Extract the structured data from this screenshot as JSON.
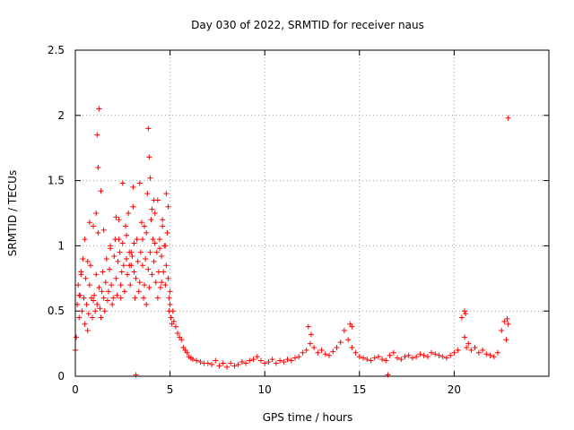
{
  "chart_data": {
    "type": "scatter",
    "title": "Day 030 of 2022, SRMTID for receiver naus",
    "xlabel": "GPS time / hours",
    "ylabel": "SRMTID / TECUs",
    "xlim": [
      0,
      25
    ],
    "ylim": [
      0,
      2.5
    ],
    "xticks": [
      0,
      5,
      10,
      15,
      20
    ],
    "xtick_labels": [
      "0",
      "5",
      "10",
      "15",
      "20"
    ],
    "yticks": [
      0,
      0.5,
      1,
      1.5,
      2,
      2.5
    ],
    "ytick_labels": [
      "0",
      "0.5",
      "1",
      "1.5",
      "2",
      "2.5"
    ],
    "grid": true,
    "marker": "plus",
    "series": [
      {
        "name": "SRMTID",
        "color": "#ff0000",
        "x": [
          0.0,
          0.05,
          0.1,
          0.15,
          0.2,
          0.25,
          0.3,
          0.35,
          0.4,
          0.45,
          0.5,
          0.55,
          0.6,
          0.65,
          0.7,
          0.75,
          0.8,
          0.85,
          0.9,
          0.95,
          1.0,
          1.05,
          1.1,
          1.15,
          1.2,
          1.25,
          1.3,
          1.35,
          1.4,
          1.45,
          1.5,
          1.55,
          1.6,
          1.65,
          1.7,
          1.75,
          1.8,
          1.85,
          1.9,
          1.95,
          2.0,
          2.05,
          2.1,
          2.15,
          2.2,
          2.25,
          2.3,
          2.35,
          2.4,
          2.45,
          2.5,
          2.55,
          2.6,
          2.65,
          2.7,
          2.75,
          2.8,
          2.85,
          2.9,
          2.95,
          3.0,
          3.05,
          3.1,
          3.15,
          3.2,
          3.25,
          3.3,
          3.35,
          3.4,
          3.45,
          3.5,
          3.55,
          3.6,
          3.65,
          3.7,
          3.75,
          3.8,
          3.85,
          3.9,
          3.95,
          4.0,
          4.05,
          4.1,
          4.15,
          4.2,
          4.25,
          4.3,
          4.35,
          4.4,
          4.45,
          4.5,
          4.55,
          4.6,
          4.65,
          4.7,
          4.75,
          4.8,
          4.85,
          4.9,
          4.95,
          5.0,
          5.05,
          5.1,
          5.15,
          5.2,
          5.3,
          5.4,
          5.5,
          5.6,
          5.7,
          5.8,
          5.9,
          6.0,
          6.1,
          6.2,
          6.4,
          6.6,
          6.8,
          7.0,
          7.2,
          7.4,
          7.6,
          7.8,
          8.0,
          8.2,
          8.4,
          8.6,
          8.8,
          9.0,
          9.2,
          9.4,
          9.6,
          9.8,
          10.0,
          10.2,
          10.4,
          10.6,
          10.8,
          11.0,
          11.2,
          11.4,
          11.6,
          11.8,
          12.0,
          12.2,
          12.4,
          12.6,
          12.8,
          13.0,
          13.2,
          13.4,
          13.6,
          13.8,
          14.0,
          14.2,
          14.4,
          14.6,
          14.8,
          15.0,
          15.2,
          15.4,
          15.6,
          15.8,
          16.0,
          16.2,
          16.4,
          16.6,
          16.8,
          17.0,
          17.2,
          17.4,
          17.6,
          17.8,
          18.0,
          18.2,
          18.4,
          18.6,
          18.8,
          19.0,
          19.2,
          19.4,
          19.6,
          19.8,
          20.0,
          20.2,
          20.4,
          20.55,
          20.65,
          20.75,
          20.9,
          21.1,
          21.3,
          21.5,
          21.7,
          21.9,
          22.1,
          22.3,
          22.5,
          22.65,
          22.75,
          22.85,
          1.15,
          1.2,
          1.25,
          3.85,
          3.9,
          3.95,
          2.5,
          3.05,
          4.8,
          4.9,
          0.95,
          1.35,
          3.2,
          16.5,
          2.95,
          0.5,
          1.1,
          4.15,
          4.45,
          4.75,
          3.55,
          2.15,
          0.75,
          1.5,
          2.7,
          3.1,
          3.4,
          4.05,
          4.2,
          4.6,
          4.95,
          0.3,
          0.65,
          1.85,
          2.3,
          2.85,
          3.65,
          4.35,
          5.05,
          0.2,
          2.4,
          3.75,
          4.55,
          5.0,
          12.3,
          12.45,
          14.5,
          14.6,
          20.55,
          20.6,
          22.8,
          22.85
        ],
        "y": [
          0.2,
          0.3,
          0.55,
          0.7,
          0.45,
          0.62,
          0.8,
          0.5,
          0.9,
          0.6,
          0.4,
          0.75,
          0.55,
          0.35,
          0.48,
          0.7,
          0.85,
          0.6,
          0.45,
          0.58,
          0.62,
          0.5,
          0.78,
          0.55,
          1.1,
          0.68,
          0.52,
          0.45,
          0.65,
          0.8,
          0.6,
          0.5,
          0.72,
          0.9,
          0.58,
          0.65,
          0.82,
          1.0,
          0.7,
          0.55,
          0.6,
          0.92,
          1.05,
          0.75,
          0.62,
          0.88,
          1.2,
          0.95,
          0.7,
          0.8,
          1.02,
          0.85,
          0.65,
          1.15,
          0.9,
          0.78,
          1.25,
          0.95,
          0.7,
          0.85,
          0.92,
          1.3,
          0.8,
          0.6,
          0.75,
          1.05,
          0.88,
          0.65,
          0.72,
          0.95,
          1.18,
          0.85,
          0.6,
          0.7,
          0.9,
          1.1,
          1.4,
          0.82,
          0.68,
          0.95,
          1.2,
          0.78,
          1.05,
          0.88,
          1.25,
          0.72,
          0.95,
          1.35,
          0.8,
          1.05,
          0.68,
          0.92,
          1.15,
          0.8,
          1.0,
          0.7,
          0.85,
          1.1,
          0.75,
          0.6,
          0.55,
          0.45,
          0.4,
          0.5,
          0.42,
          0.38,
          0.33,
          0.3,
          0.28,
          0.22,
          0.2,
          0.18,
          0.15,
          0.14,
          0.13,
          0.12,
          0.11,
          0.1,
          0.1,
          0.09,
          0.12,
          0.08,
          0.1,
          0.07,
          0.1,
          0.08,
          0.09,
          0.11,
          0.1,
          0.12,
          0.13,
          0.15,
          0.12,
          0.1,
          0.11,
          0.13,
          0.1,
          0.12,
          0.11,
          0.13,
          0.12,
          0.14,
          0.15,
          0.18,
          0.2,
          0.25,
          0.22,
          0.18,
          0.2,
          0.17,
          0.16,
          0.19,
          0.22,
          0.26,
          0.35,
          0.28,
          0.22,
          0.18,
          0.15,
          0.14,
          0.13,
          0.12,
          0.14,
          0.15,
          0.13,
          0.12,
          0.16,
          0.18,
          0.14,
          0.13,
          0.15,
          0.16,
          0.14,
          0.15,
          0.17,
          0.16,
          0.15,
          0.18,
          0.17,
          0.16,
          0.15,
          0.14,
          0.16,
          0.18,
          0.2,
          0.45,
          0.3,
          0.22,
          0.25,
          0.2,
          0.22,
          0.18,
          0.2,
          0.17,
          0.16,
          0.15,
          0.18,
          0.35,
          0.42,
          0.28,
          1.98,
          1.85,
          1.6,
          2.05,
          1.9,
          1.68,
          1.52,
          1.48,
          1.45,
          1.4,
          1.3,
          1.15,
          1.42,
          0.01,
          0.01,
          0.95,
          1.05,
          1.25,
          1.35,
          0.98,
          1.0,
          1.05,
          1.22,
          1.18,
          1.12,
          1.08,
          1.02,
          1.48,
          1.28,
          1.02,
          1.2,
          0.5,
          0.78,
          0.88,
          0.98,
          1.05,
          0.85,
          1.15,
          0.6,
          0.45,
          0.62,
          0.6,
          0.55,
          0.72,
          0.65,
          0.38,
          0.32,
          0.4,
          0.38,
          0.5,
          0.48,
          0.44,
          0.4
        ]
      }
    ]
  }
}
